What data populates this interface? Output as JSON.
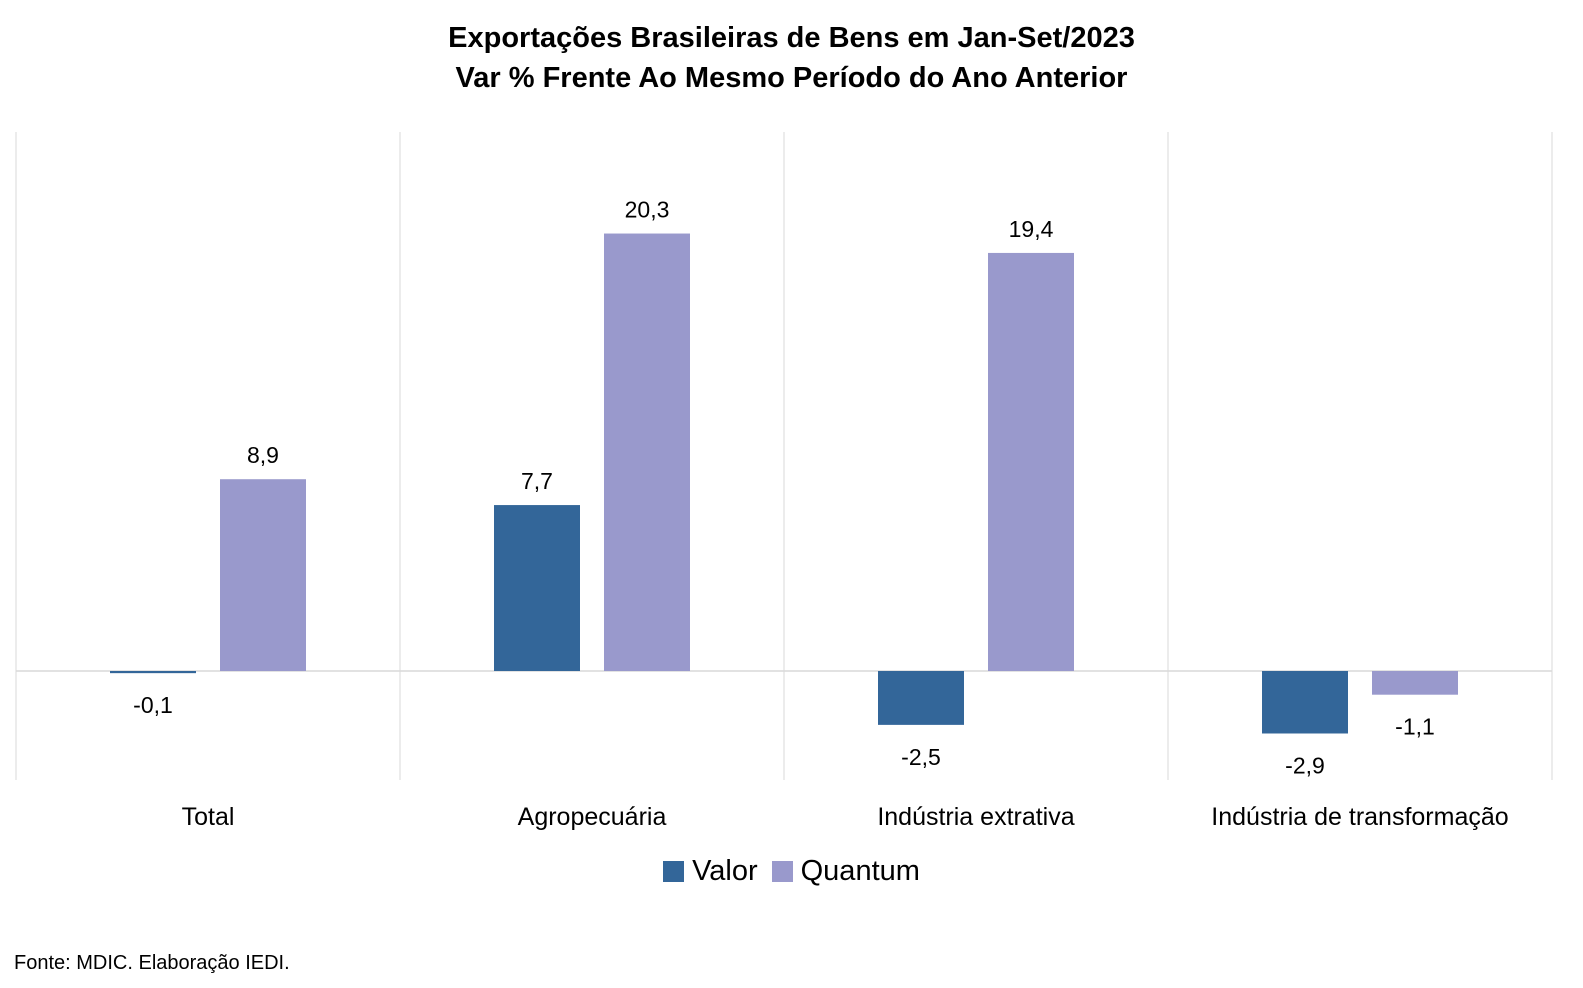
{
  "chart_data": {
    "type": "bar",
    "title": "Exportações Brasileiras de Bens em Jan-Set/2023",
    "subtitle": "Var % Frente Ao Mesmo Período do Ano Anterior",
    "categories": [
      "Total",
      "Agropecuária",
      "Indústria extrativa",
      "Indústria de transformação"
    ],
    "series": [
      {
        "name": "Valor",
        "values": [
          -0.1,
          7.7,
          -2.5,
          -2.9
        ],
        "labels": [
          "-0,1",
          "7,7",
          "-2,5",
          "-2,9"
        ],
        "color": "#336699"
      },
      {
        "name": "Quantum",
        "values": [
          8.9,
          20.3,
          19.4,
          -1.1
        ],
        "labels": [
          "8,9",
          "20,3",
          "19,4",
          "-1,1"
        ],
        "color": "#9999CC"
      }
    ],
    "ylim": [
      -5,
      25
    ],
    "xlabel": "",
    "ylabel": "",
    "grid": "vertical separators",
    "legend": "bottom-center"
  },
  "source": "Fonte: MDIC. Elaboração IEDI."
}
